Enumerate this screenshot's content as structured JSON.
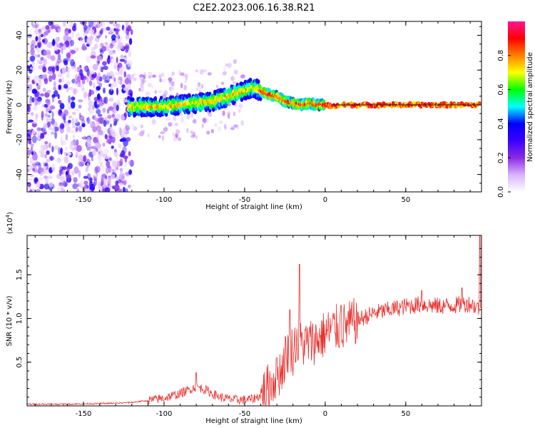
{
  "title": "C2E2.2023.006.16.38.R21",
  "chart_data": [
    {
      "type": "heatmap",
      "xlabel": "Height of straight line (km)",
      "ylabel": "Frequency (Hz)",
      "xlim": [
        -185,
        97
      ],
      "ylim": [
        -50,
        48
      ],
      "xticks": [
        -150,
        -100,
        -50,
        0,
        50
      ],
      "yticks": [
        -40,
        -20,
        0,
        20,
        40
      ],
      "colorbar": {
        "label": "Normalized spectral amplitude",
        "ticks": [
          "0.0",
          "0.2",
          "0.4",
          "0.6",
          "0.8"
        ],
        "range": [
          0,
          1
        ],
        "colors": [
          "#ffffff",
          "#d9b3ff",
          "#8a2be2",
          "#3a00ff",
          "#0000ff",
          "#00ffff",
          "#00ff00",
          "#ffff00",
          "#ff7f00",
          "#ff0000",
          "#ff1493"
        ]
      },
      "ridge": {
        "x": [
          -122,
          -110,
          -100,
          -90,
          -80,
          -70,
          -60,
          -50,
          -45,
          -40,
          -35,
          -30,
          -25,
          -20,
          -15,
          -10,
          -5,
          0,
          5,
          10,
          20,
          30,
          40,
          50,
          60,
          70,
          80,
          90,
          95
        ],
        "y": [
          -1,
          -1,
          -1,
          0,
          1,
          2,
          5,
          8,
          10,
          8,
          6,
          5,
          2,
          1,
          0,
          1,
          0,
          0,
          -1,
          0,
          0,
          0,
          0,
          0,
          0,
          0,
          0,
          0,
          0
        ]
      },
      "noise_region_x": [
        -185,
        -120
      ]
    },
    {
      "type": "line",
      "xlabel": "Height of straight line (km)",
      "ylabel": "SNR (10 * v/v)",
      "y_scale_label": "(x10",
      "y_scale_exp": "4",
      "xlim": [
        -185,
        97
      ],
      "ylim": [
        0,
        1.95
      ],
      "xticks": [
        -150,
        -100,
        -50,
        0,
        50
      ],
      "yticks": [
        0.5,
        1.0,
        1.5
      ],
      "ytick_labels": [
        "0.5",
        "1.0",
        "1.5"
      ],
      "color": "#e8322f",
      "series": [
        {
          "x": [
            -185,
            -160,
            -130,
            -120,
            -110,
            -100,
            -90,
            -85,
            -80,
            -75,
            -70,
            -65,
            -60,
            -55,
            -50,
            -45,
            -40,
            -35,
            -30,
            -27,
            -25,
            -22,
            -20,
            -18,
            -15,
            -10,
            -5,
            0,
            5,
            10,
            15,
            20,
            30,
            40,
            50,
            60,
            70,
            80,
            90,
            95
          ],
          "values": [
            0.02,
            0.02,
            0.03,
            0.04,
            0.06,
            0.09,
            0.14,
            0.18,
            0.22,
            0.19,
            0.14,
            0.1,
            0.08,
            0.07,
            0.07,
            0.08,
            0.12,
            0.22,
            0.35,
            0.42,
            0.55,
            0.68,
            0.62,
            0.75,
            0.7,
            0.72,
            0.76,
            0.82,
            0.88,
            0.9,
            0.93,
            0.98,
            1.06,
            1.1,
            1.14,
            1.16,
            1.14,
            1.15,
            1.17,
            1.12
          ]
        }
      ],
      "spikes": [
        {
          "x": -80,
          "value": 0.38
        },
        {
          "x": -30,
          "value": 0.55
        },
        {
          "x": -22,
          "value": 1.1
        },
        {
          "x": -16,
          "value": 1.62
        },
        {
          "x": 10,
          "value": 1.15
        },
        {
          "x": 60,
          "value": 1.32
        },
        {
          "x": 85,
          "value": 1.35
        },
        {
          "x": 96,
          "value": 1.95
        }
      ]
    }
  ]
}
